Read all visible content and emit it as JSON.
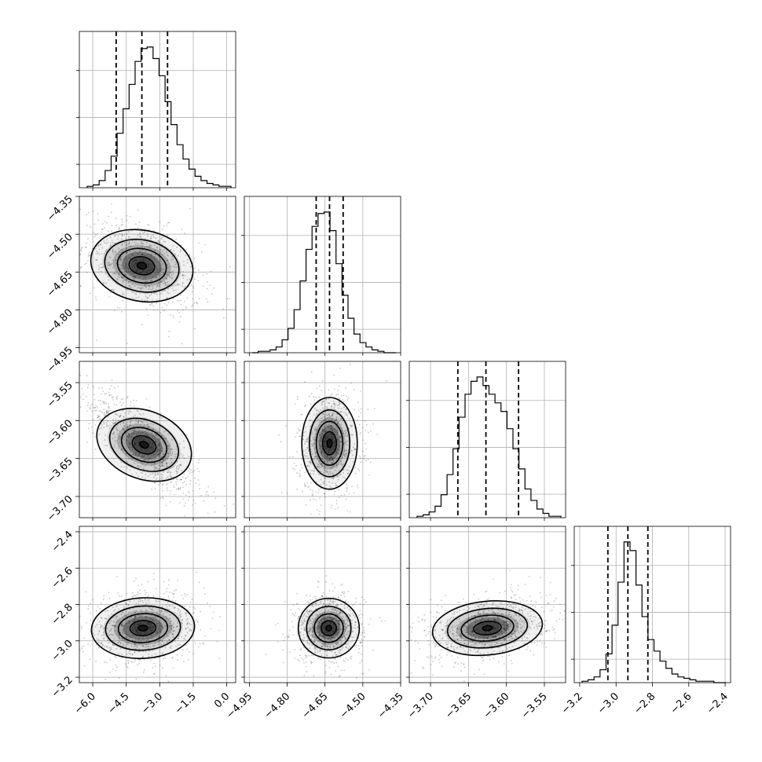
{
  "chart_data": {
    "type": "corner",
    "parameters": 4,
    "grid": true,
    "axes": [
      {
        "range": [
          -6.6,
          0.4
        ],
        "ticks": [
          "-6.0",
          "-4.5",
          "-3.0",
          "-1.5",
          "0.0"
        ],
        "tick_values": [
          -6.0,
          -4.5,
          -3.0,
          -1.5,
          0.0
        ]
      },
      {
        "range": [
          -4.97,
          -4.35
        ],
        "ticks": [
          "-4.95",
          "-4.80",
          "-4.65",
          "-4.50",
          "-4.35"
        ],
        "tick_values": [
          -4.95,
          -4.8,
          -4.65,
          -4.5,
          -4.35
        ]
      },
      {
        "range": [
          -3.728,
          -3.522
        ],
        "ticks": [
          "-3.70",
          "-3.65",
          "-3.60",
          "-3.55"
        ],
        "tick_values": [
          -3.7,
          -3.65,
          -3.6,
          -3.55
        ]
      },
      {
        "range": [
          -3.23,
          -2.37
        ],
        "ticks": [
          "-3.2",
          "-3.0",
          "-2.8",
          "-2.6",
          "-2.4"
        ],
        "tick_values": [
          -3.2,
          -3.0,
          -2.8,
          -2.6,
          -2.4
        ]
      }
    ],
    "y_axis_ticks": {
      "row1": [
        "-4.35",
        "-4.50",
        "-4.65",
        "-4.80",
        "-4.95"
      ],
      "row2": [
        "-3.55",
        "-3.60",
        "-3.65",
        "-3.70"
      ],
      "row3": [
        "-2.4",
        "-2.6",
        "-2.8",
        "-3.0",
        "-3.2"
      ]
    },
    "marginals": [
      {
        "quantiles": [
          -4.95,
          -3.8,
          -2.65
        ],
        "median": -3.8,
        "counts": [
          1,
          2,
          5,
          12,
          22,
          38,
          55,
          72,
          88,
          97,
          98,
          90,
          78,
          60,
          44,
          30,
          20,
          13,
          8,
          5,
          3,
          2,
          1,
          1
        ]
      },
      {
        "quantiles": [
          -4.685,
          -4.632,
          -4.578
        ],
        "median": -4.632,
        "counts": [
          0,
          1,
          1,
          2,
          4,
          9,
          17,
          30,
          50,
          72,
          88,
          97,
          98,
          85,
          62,
          40,
          24,
          13,
          7,
          4,
          2,
          1,
          0,
          0
        ]
      },
      {
        "quantiles": [
          -3.664,
          -3.627,
          -3.584
        ],
        "median": -3.627,
        "counts": [
          1,
          2,
          4,
          8,
          16,
          30,
          48,
          70,
          86,
          95,
          98,
          92,
          86,
          80,
          74,
          62,
          48,
          34,
          20,
          12,
          6,
          3,
          1,
          1
        ]
      },
      {
        "quantiles": [
          -3.045,
          -2.935,
          -2.825
        ],
        "median": -2.935,
        "counts": [
          1,
          2,
          4,
          9,
          20,
          40,
          70,
          98,
          92,
          68,
          46,
          30,
          22,
          15,
          10,
          6,
          4,
          3,
          2,
          1,
          1,
          1,
          0,
          0
        ]
      }
    ],
    "pairs": [
      {
        "row": 1,
        "col": 0,
        "mean": [
          -3.8,
          -4.625
        ],
        "sd": [
          1.05,
          0.075
        ],
        "rho": -0.42
      },
      {
        "row": 2,
        "col": 0,
        "mean": [
          -3.7,
          -3.632
        ],
        "sd": [
          1.0,
          0.028
        ],
        "rho": -0.78
      },
      {
        "row": 2,
        "col": 1,
        "mean": [
          -4.632,
          -3.63
        ],
        "sd": [
          0.05,
          0.028
        ],
        "rho": 0.05
      },
      {
        "row": 3,
        "col": 0,
        "mean": [
          -3.75,
          -2.93
        ],
        "sd": [
          1.05,
          0.08
        ],
        "rho": 0.15
      },
      {
        "row": 3,
        "col": 1,
        "mean": [
          -4.635,
          -2.93
        ],
        "sd": [
          0.055,
          0.075
        ],
        "rho": 0.02
      },
      {
        "row": 3,
        "col": 2,
        "mean": [
          -3.625,
          -2.93
        ],
        "sd": [
          0.033,
          0.075
        ],
        "rho": 0.3
      }
    ]
  }
}
